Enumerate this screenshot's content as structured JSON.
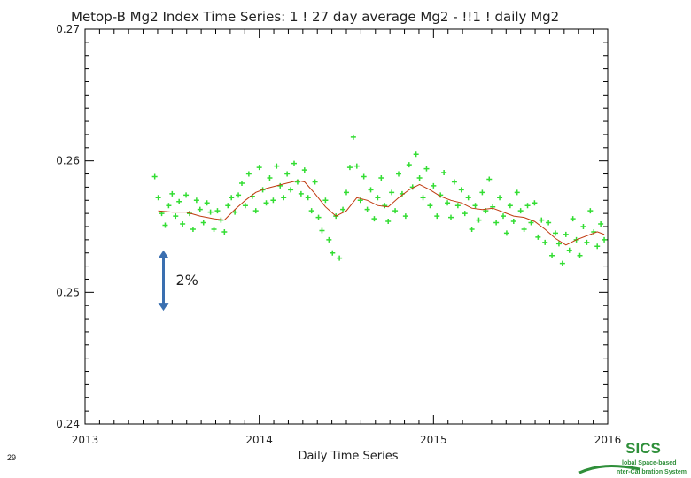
{
  "chart_data": {
    "type": "scatter",
    "title": "Metop-B Mg2 Index Time Series: 1 ! 27 day average Mg2 - !!1 ! daily Mg2",
    "xlabel": "Daily Time Series",
    "ylabel": "",
    "xlim": [
      2013,
      2016
    ],
    "ylim": [
      0.24,
      0.27
    ],
    "x_ticks": [
      "2013",
      "2014",
      "2015",
      "2016"
    ],
    "y_ticks": [
      "0.24",
      "0.25",
      "0.26",
      "0.27"
    ],
    "grid": false,
    "series": [
      {
        "kind": "daily",
        "color": "#33dd33",
        "points": [
          [
            2013.4,
            0.2588
          ],
          [
            2013.42,
            0.2572
          ],
          [
            2013.44,
            0.256
          ],
          [
            2013.46,
            0.2551
          ],
          [
            2013.48,
            0.2566
          ],
          [
            2013.5,
            0.2575
          ],
          [
            2013.52,
            0.2558
          ],
          [
            2013.54,
            0.2569
          ],
          [
            2013.56,
            0.2552
          ],
          [
            2013.58,
            0.2574
          ],
          [
            2013.6,
            0.256
          ],
          [
            2013.62,
            0.2548
          ],
          [
            2013.64,
            0.257
          ],
          [
            2013.66,
            0.2563
          ],
          [
            2013.68,
            0.2553
          ],
          [
            2013.7,
            0.2568
          ],
          [
            2013.72,
            0.2561
          ],
          [
            2013.74,
            0.2548
          ],
          [
            2013.76,
            0.2562
          ],
          [
            2013.78,
            0.2555
          ],
          [
            2013.8,
            0.2546
          ],
          [
            2013.82,
            0.2566
          ],
          [
            2013.84,
            0.2572
          ],
          [
            2013.86,
            0.2561
          ],
          [
            2013.88,
            0.2574
          ],
          [
            2013.9,
            0.2583
          ],
          [
            2013.92,
            0.2566
          ],
          [
            2013.94,
            0.259
          ],
          [
            2013.96,
            0.2573
          ],
          [
            2013.98,
            0.2562
          ],
          [
            2014.0,
            0.2595
          ],
          [
            2014.02,
            0.2578
          ],
          [
            2014.04,
            0.2568
          ],
          [
            2014.06,
            0.2587
          ],
          [
            2014.08,
            0.257
          ],
          [
            2014.1,
            0.2596
          ],
          [
            2014.12,
            0.2581
          ],
          [
            2014.14,
            0.2572
          ],
          [
            2014.16,
            0.259
          ],
          [
            2014.18,
            0.2578
          ],
          [
            2014.2,
            0.2598
          ],
          [
            2014.22,
            0.2584
          ],
          [
            2014.24,
            0.2575
          ],
          [
            2014.26,
            0.2593
          ],
          [
            2014.28,
            0.2572
          ],
          [
            2014.3,
            0.2562
          ],
          [
            2014.32,
            0.2584
          ],
          [
            2014.34,
            0.2557
          ],
          [
            2014.36,
            0.2547
          ],
          [
            2014.38,
            0.257
          ],
          [
            2014.4,
            0.254
          ],
          [
            2014.42,
            0.253
          ],
          [
            2014.44,
            0.2558
          ],
          [
            2014.46,
            0.2526
          ],
          [
            2014.48,
            0.2563
          ],
          [
            2014.5,
            0.2576
          ],
          [
            2014.52,
            0.2595
          ],
          [
            2014.54,
            0.2618
          ],
          [
            2014.56,
            0.2596
          ],
          [
            2014.58,
            0.257
          ],
          [
            2014.6,
            0.2588
          ],
          [
            2014.62,
            0.2563
          ],
          [
            2014.64,
            0.2578
          ],
          [
            2014.66,
            0.2556
          ],
          [
            2014.68,
            0.2572
          ],
          [
            2014.7,
            0.2587
          ],
          [
            2014.72,
            0.2566
          ],
          [
            2014.74,
            0.2554
          ],
          [
            2014.76,
            0.2576
          ],
          [
            2014.78,
            0.2562
          ],
          [
            2014.8,
            0.259
          ],
          [
            2014.82,
            0.2575
          ],
          [
            2014.84,
            0.2558
          ],
          [
            2014.86,
            0.2597
          ],
          [
            2014.88,
            0.258
          ],
          [
            2014.9,
            0.2605
          ],
          [
            2014.92,
            0.2587
          ],
          [
            2014.94,
            0.2572
          ],
          [
            2014.96,
            0.2594
          ],
          [
            2014.98,
            0.2566
          ],
          [
            2015.0,
            0.2581
          ],
          [
            2015.02,
            0.2558
          ],
          [
            2015.04,
            0.2574
          ],
          [
            2015.06,
            0.2591
          ],
          [
            2015.08,
            0.2568
          ],
          [
            2015.1,
            0.2557
          ],
          [
            2015.12,
            0.2584
          ],
          [
            2015.14,
            0.2566
          ],
          [
            2015.16,
            0.2578
          ],
          [
            2015.18,
            0.256
          ],
          [
            2015.2,
            0.2572
          ],
          [
            2015.22,
            0.2548
          ],
          [
            2015.24,
            0.2566
          ],
          [
            2015.26,
            0.2555
          ],
          [
            2015.28,
            0.2576
          ],
          [
            2015.3,
            0.2562
          ],
          [
            2015.32,
            0.2586
          ],
          [
            2015.34,
            0.2565
          ],
          [
            2015.36,
            0.2553
          ],
          [
            2015.38,
            0.2572
          ],
          [
            2015.4,
            0.2558
          ],
          [
            2015.42,
            0.2545
          ],
          [
            2015.44,
            0.2566
          ],
          [
            2015.46,
            0.2554
          ],
          [
            2015.48,
            0.2576
          ],
          [
            2015.5,
            0.2562
          ],
          [
            2015.52,
            0.2548
          ],
          [
            2015.54,
            0.2566
          ],
          [
            2015.56,
            0.2553
          ],
          [
            2015.58,
            0.2568
          ],
          [
            2015.6,
            0.2542
          ],
          [
            2015.62,
            0.2555
          ],
          [
            2015.64,
            0.2538
          ],
          [
            2015.66,
            0.2553
          ],
          [
            2015.68,
            0.2528
          ],
          [
            2015.7,
            0.2545
          ],
          [
            2015.72,
            0.2537
          ],
          [
            2015.74,
            0.2522
          ],
          [
            2015.76,
            0.2544
          ],
          [
            2015.78,
            0.2532
          ],
          [
            2015.8,
            0.2556
          ],
          [
            2015.82,
            0.254
          ],
          [
            2015.84,
            0.2528
          ],
          [
            2015.86,
            0.255
          ],
          [
            2015.88,
            0.2538
          ],
          [
            2015.9,
            0.2562
          ],
          [
            2015.92,
            0.2546
          ],
          [
            2015.94,
            0.2535
          ],
          [
            2015.96,
            0.2552
          ],
          [
            2015.98,
            0.254
          ]
        ]
      },
      {
        "kind": "27-day average",
        "color": "#c03a10",
        "points": [
          [
            2013.42,
            0.2562
          ],
          [
            2013.5,
            0.2561
          ],
          [
            2013.58,
            0.2561
          ],
          [
            2013.66,
            0.2558
          ],
          [
            2013.74,
            0.2556
          ],
          [
            2013.8,
            0.2555
          ],
          [
            2013.86,
            0.2563
          ],
          [
            2013.92,
            0.257
          ],
          [
            2013.98,
            0.2576
          ],
          [
            2014.04,
            0.2579
          ],
          [
            2014.1,
            0.2581
          ],
          [
            2014.16,
            0.2583
          ],
          [
            2014.22,
            0.2585
          ],
          [
            2014.26,
            0.2584
          ],
          [
            2014.32,
            0.2575
          ],
          [
            2014.38,
            0.2565
          ],
          [
            2014.44,
            0.2558
          ],
          [
            2014.5,
            0.2562
          ],
          [
            2014.56,
            0.2572
          ],
          [
            2014.62,
            0.257
          ],
          [
            2014.68,
            0.2566
          ],
          [
            2014.74,
            0.2565
          ],
          [
            2014.8,
            0.2572
          ],
          [
            2014.86,
            0.2578
          ],
          [
            2014.92,
            0.2582
          ],
          [
            2014.98,
            0.2578
          ],
          [
            2015.04,
            0.2573
          ],
          [
            2015.1,
            0.257
          ],
          [
            2015.16,
            0.2568
          ],
          [
            2015.22,
            0.2564
          ],
          [
            2015.28,
            0.2563
          ],
          [
            2015.34,
            0.2564
          ],
          [
            2015.4,
            0.2561
          ],
          [
            2015.46,
            0.2558
          ],
          [
            2015.52,
            0.2557
          ],
          [
            2015.58,
            0.2554
          ],
          [
            2015.64,
            0.2548
          ],
          [
            2015.7,
            0.2541
          ],
          [
            2015.76,
            0.2536
          ],
          [
            2015.82,
            0.254
          ],
          [
            2015.88,
            0.2543
          ],
          [
            2015.94,
            0.2546
          ],
          [
            2015.98,
            0.2544
          ]
        ]
      }
    ],
    "annotations": [
      {
        "text": "2%",
        "x": 2013.45,
        "y_range": [
          0.2486,
          0.2532
        ],
        "color": "#3a6fb0"
      }
    ]
  },
  "slide_number": "29",
  "logo": {
    "word": "SICS",
    "line1": "lobal Space-based",
    "line2": "nter-Calibration System",
    "color": "#2f8f3a"
  }
}
